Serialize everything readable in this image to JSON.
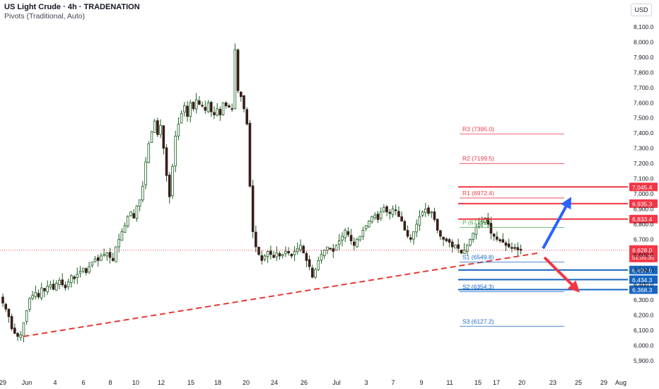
{
  "header": {
    "title": "US Light Crude · 4h · TRADENATION",
    "subtitle": "Pivots (Traditional, Auto)",
    "currency": "USD"
  },
  "colors": {
    "up": "#ffffff",
    "down": "#3a1c1c",
    "wick": "#1b5e20",
    "resistance": "#f23645",
    "support": "#1565c0",
    "pivot": "#4caf50",
    "trend": "#e53935",
    "arrow_up": "#2962ff",
    "arrow_down": "#f23645",
    "price": "#f23645"
  },
  "chart_data": {
    "type": "candlestick",
    "y_axis": {
      "ticks": [
        "8,100.0",
        "8,000.0",
        "7,900.0",
        "7,800.0",
        "7,700.0",
        "7,600.0",
        "7,500.0",
        "7,400.0",
        "7,300.0",
        "7,200.0",
        "7,100.0",
        "7,000.0",
        "6,900.0",
        "6,800.0",
        "6,700.0",
        "6,600.0",
        "6,500.0",
        "6,400.0",
        "6,300.0",
        "6,200.0",
        "6,100.0",
        "6,000.0",
        "5,900.0"
      ],
      "ylim": [
        5890,
        8180
      ]
    },
    "x_axis": {
      "ticks": [
        "29",
        "Jun",
        "4",
        "6",
        "8",
        "10",
        "12",
        "15",
        "18",
        "20",
        "24",
        "26",
        "Jul",
        "3",
        "7",
        "9",
        "11",
        "15",
        "17",
        "20",
        "23",
        "25",
        "29",
        "Aug"
      ]
    },
    "current_price": {
      "value": 6628.0,
      "label": "6,628.0",
      "countdown": "01:05:35"
    },
    "price_tags": [
      {
        "value": 7045.4,
        "label": "7,045.4",
        "kind": "resistance"
      },
      {
        "value": 6935.3,
        "label": "6,935.3",
        "kind": "resistance"
      },
      {
        "value": 6833.4,
        "label": "6,833.4",
        "kind": "resistance"
      },
      {
        "value": 6497.6,
        "label": "6,497.6",
        "kind": "support"
      },
      {
        "value": 6434.3,
        "label": "6,434.3",
        "kind": "support"
      },
      {
        "value": 6368.3,
        "label": "6,368.3",
        "kind": "support"
      }
    ],
    "pivots": [
      {
        "label": "R3 (7395.0)",
        "value": 7395.0,
        "kind": "resistance"
      },
      {
        "label": "R2 (7199.5)",
        "value": 7199.5,
        "kind": "resistance"
      },
      {
        "label": "R1 (6972.4)",
        "value": 6972.4,
        "kind": "resistance"
      },
      {
        "label": "P (6779.1)",
        "value": 6779.1,
        "kind": "pivot"
      },
      {
        "label": "S1 (6549.8)",
        "value": 6549.8,
        "kind": "support"
      },
      {
        "label": "S2 (6354.3)",
        "value": 6354.3,
        "kind": "support"
      },
      {
        "label": "S3 (6127.2)",
        "value": 6127.2,
        "kind": "support"
      }
    ],
    "trendline": {
      "from": {
        "bar": 7,
        "value": 6060
      },
      "to": {
        "bar": 180,
        "value": 6610
      }
    },
    "arrows": [
      {
        "direction": "up",
        "from_value": 6640,
        "to_value": 6980
      },
      {
        "direction": "down",
        "from_value": 6580,
        "to_value": 6350
      }
    ],
    "closes": [
      6280,
      6240,
      6190,
      6110,
      6080,
      6060,
      6070,
      6150,
      6230,
      6310,
      6330,
      6350,
      6320,
      6380,
      6360,
      6390,
      6400,
      6370,
      6410,
      6430,
      6400,
      6380,
      6420,
      6460,
      6440,
      6470,
      6490,
      6510,
      6480,
      6520,
      6550,
      6570,
      6560,
      6590,
      6600,
      6610,
      6580,
      6560,
      6650,
      6700,
      6750,
      6790,
      6850,
      6880,
      6840,
      6920,
      6960,
      7050,
      7210,
      7330,
      7410,
      7480,
      7390,
      7450,
      7300,
      7120,
      6980,
      7180,
      7380,
      7460,
      7530,
      7580,
      7510,
      7600,
      7560,
      7620,
      7590,
      7580,
      7550,
      7600,
      7540,
      7520,
      7560,
      7520,
      7600,
      7580,
      7570,
      7560,
      7950,
      7680,
      7640,
      7560,
      7460,
      7050,
      6750,
      6650,
      6600,
      6560,
      6590,
      6620,
      6600,
      6580,
      6610,
      6590,
      6600,
      6620,
      6610,
      6590,
      6620,
      6640,
      6660,
      6610,
      6560,
      6520,
      6450,
      6500,
      6560,
      6600,
      6630,
      6650,
      6640,
      6620,
      6660,
      6690,
      6720,
      6760,
      6730,
      6690,
      6660,
      6700,
      6720,
      6760,
      6790,
      6820,
      6850,
      6860,
      6830,
      6880,
      6910,
      6880,
      6870,
      6900,
      6890,
      6850,
      6820,
      6760,
      6720,
      6700,
      6750,
      6800,
      6850,
      6880,
      6900,
      6870,
      6880,
      6830,
      6760,
      6720,
      6700,
      6690,
      6680,
      6650,
      6660,
      6640,
      6610,
      6630,
      6660,
      6700,
      6740,
      6780,
      6800,
      6820,
      6840,
      6800,
      6740,
      6720,
      6700,
      6690,
      6680,
      6660,
      6650,
      6640,
      6640,
      6630,
      6628
    ]
  }
}
